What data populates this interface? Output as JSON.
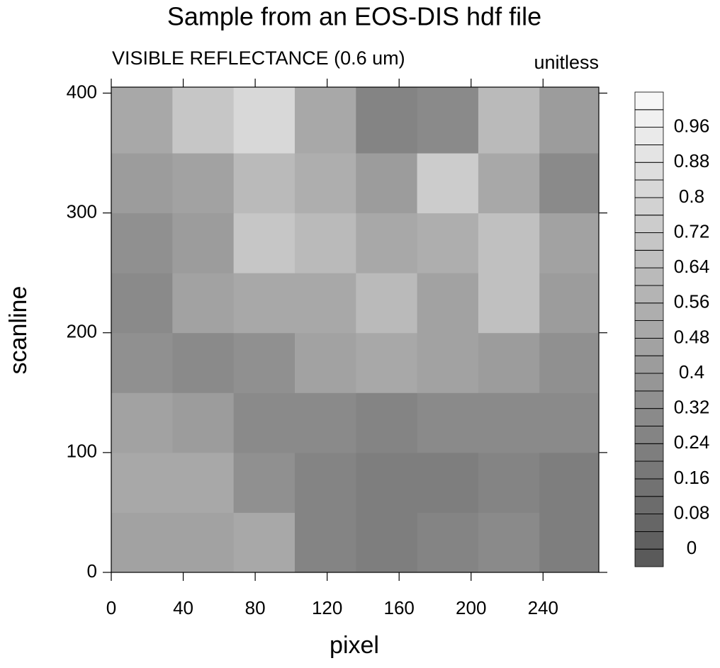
{
  "chart_data": {
    "type": "heatmap",
    "title": "Sample from an EOS-DIS hdf file",
    "subtitle": "VISIBLE REFLECTANCE (0.6 um)",
    "units": "unitless",
    "x_label": "pixel",
    "y_label": "scanline",
    "xlim": [
      0,
      271
    ],
    "ylim": [
      0,
      405
    ],
    "xticks": [
      0,
      40,
      80,
      120,
      160,
      200,
      240
    ],
    "yticks": [
      0,
      100,
      200,
      300,
      400
    ],
    "x": [
      17,
      51,
      85,
      119,
      153,
      187,
      221,
      255
    ],
    "y": [
      25,
      75,
      125,
      175,
      225,
      275,
      325,
      375
    ],
    "z": [
      [
        0.45,
        0.45,
        0.5,
        0.25,
        0.2,
        0.25,
        0.3,
        0.2
      ],
      [
        0.5,
        0.5,
        0.35,
        0.25,
        0.2,
        0.2,
        0.25,
        0.2
      ],
      [
        0.45,
        0.4,
        0.3,
        0.3,
        0.25,
        0.3,
        0.3,
        0.3
      ],
      [
        0.35,
        0.3,
        0.35,
        0.45,
        0.5,
        0.45,
        0.4,
        0.35
      ],
      [
        0.3,
        0.45,
        0.5,
        0.5,
        0.6,
        0.45,
        0.65,
        0.4
      ],
      [
        0.35,
        0.4,
        0.7,
        0.6,
        0.5,
        0.55,
        0.65,
        0.45
      ],
      [
        0.4,
        0.45,
        0.6,
        0.55,
        0.4,
        0.75,
        0.5,
        0.3
      ],
      [
        0.5,
        0.7,
        0.8,
        0.5,
        0.25,
        0.3,
        0.6,
        0.4
      ]
    ],
    "colorbar_levels": [
      0,
      0.04,
      0.08,
      0.12,
      0.16,
      0.2,
      0.24,
      0.28,
      0.32,
      0.36,
      0.4,
      0.44,
      0.48,
      0.52,
      0.56,
      0.6,
      0.64,
      0.68,
      0.72,
      0.76,
      0.8,
      0.84,
      0.88,
      0.92,
      0.96,
      1
    ],
    "colormap": [
      "#5a5a5a",
      "#f6f6f6"
    ]
  }
}
